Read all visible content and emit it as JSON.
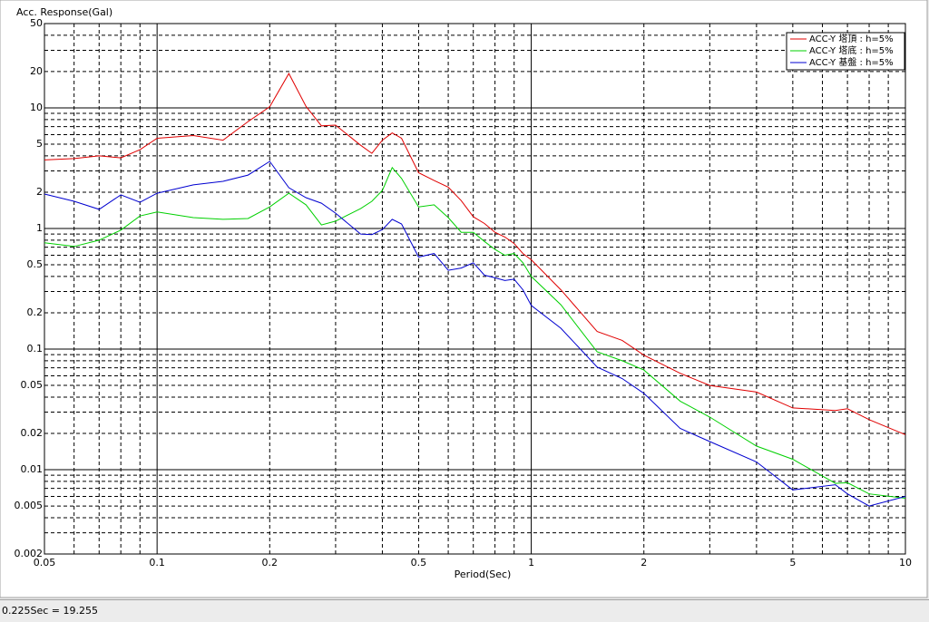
{
  "chart_data": {
    "type": "line",
    "y_label": "Acc. Response(Gal)",
    "x_label": "Period(Sec)",
    "status": "0.225Sec = 19.255",
    "xscale": "log",
    "yscale": "log",
    "grid": true,
    "legend_position": "upper right",
    "xlim": [
      0.05,
      10
    ],
    "ylim": [
      0.002,
      50
    ],
    "xticks": [
      0.05,
      0.1,
      0.2,
      0.5,
      1,
      2,
      5,
      10
    ],
    "yticks": [
      0.002,
      0.005,
      0.01,
      0.02,
      0.05,
      0.1,
      0.2,
      0.5,
      1,
      2,
      5,
      10,
      20,
      50
    ],
    "xminor": [
      0.06,
      0.07,
      0.08,
      0.09,
      0.3,
      0.4,
      0.6,
      0.7,
      0.8,
      0.9,
      3,
      4,
      6,
      7,
      8,
      9
    ],
    "yminor": [
      0.003,
      0.004,
      0.006,
      0.007,
      0.008,
      0.009,
      0.03,
      0.04,
      0.06,
      0.07,
      0.08,
      0.09,
      0.3,
      0.4,
      0.6,
      0.7,
      0.8,
      0.9,
      3,
      4,
      6,
      7,
      8,
      9,
      30,
      40
    ],
    "x": [
      0.05,
      0.06,
      0.07,
      0.08,
      0.09,
      0.1,
      0.125,
      0.15,
      0.175,
      0.2,
      0.225,
      0.25,
      0.275,
      0.3,
      0.35,
      0.375,
      0.4,
      0.425,
      0.45,
      0.5,
      0.55,
      0.6,
      0.65,
      0.7,
      0.75,
      0.8,
      0.85,
      0.9,
      0.95,
      1,
      1.2,
      1.5,
      1.75,
      2,
      2.5,
      3,
      4,
      5,
      6.5,
      7,
      8,
      10
    ],
    "series": [
      {
        "name": "ACC-Y 塔頂 : h=5%",
        "color": "#e00000",
        "values": [
          3.7,
          3.8,
          4.0,
          3.85,
          4.5,
          5.6,
          5.9,
          5.4,
          7.7,
          10.2,
          19.255,
          10.3,
          7.1,
          7.2,
          4.9,
          4.2,
          5.4,
          6.2,
          5.6,
          2.9,
          2.5,
          2.2,
          1.7,
          1.25,
          1.1,
          0.93,
          0.85,
          0.75,
          0.62,
          0.55,
          0.31,
          0.14,
          0.118,
          0.089,
          0.063,
          0.05,
          0.044,
          0.0325,
          0.031,
          0.032,
          0.026,
          0.0195
        ]
      },
      {
        "name": "ACC-Y 塔底 : h=5%",
        "color": "#00d000",
        "values": [
          0.76,
          0.71,
          0.8,
          0.97,
          1.27,
          1.37,
          1.23,
          1.19,
          1.21,
          1.51,
          1.96,
          1.57,
          1.07,
          1.15,
          1.46,
          1.68,
          2.07,
          3.2,
          2.6,
          1.51,
          1.57,
          1.23,
          0.93,
          0.93,
          0.78,
          0.67,
          0.6,
          0.62,
          0.52,
          0.4,
          0.233,
          0.095,
          0.08,
          0.067,
          0.037,
          0.0273,
          0.0157,
          0.0122,
          0.0077,
          0.0078,
          0.0063,
          0.0058
        ]
      },
      {
        "name": "ACC-Y 基盤 : h=5%",
        "color": "#0000d0",
        "values": [
          1.93,
          1.68,
          1.44,
          1.9,
          1.65,
          1.96,
          2.3,
          2.46,
          2.77,
          3.6,
          2.18,
          1.8,
          1.62,
          1.34,
          0.9,
          0.89,
          0.98,
          1.19,
          1.09,
          0.58,
          0.62,
          0.45,
          0.47,
          0.52,
          0.41,
          0.39,
          0.37,
          0.38,
          0.31,
          0.23,
          0.149,
          0.071,
          0.057,
          0.043,
          0.022,
          0.0171,
          0.0116,
          0.0068,
          0.0075,
          0.0063,
          0.005,
          0.006
        ]
      }
    ]
  }
}
